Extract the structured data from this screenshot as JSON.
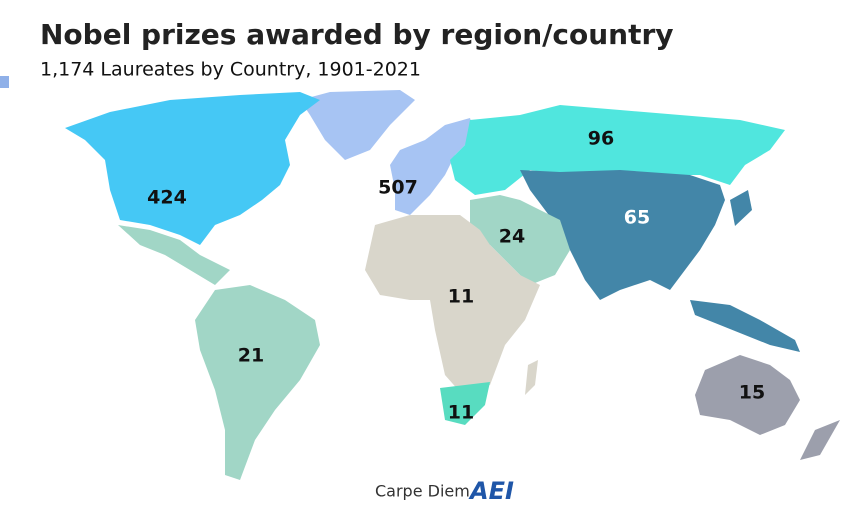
{
  "title": "Nobel prizes awarded by region/country",
  "subtitle": "1,174 Laureates by Country, 1901-2021",
  "regions": [
    {
      "value": 424,
      "color": "#45c8f5"
    },
    {
      "value": 507,
      "color": "#a7c4f3"
    },
    {
      "value": 96,
      "color": "#50e6de"
    },
    {
      "value": 65,
      "color": "#4386a8"
    },
    {
      "value": 24,
      "color": "#a1d6c6"
    },
    {
      "value": 11,
      "color": "#d9d6cb"
    },
    {
      "value": 21,
      "color": "#a1d6c6"
    },
    {
      "value": 11,
      "color": "#58dcc0"
    },
    {
      "value": 15,
      "color": "#9c9fac"
    }
  ],
  "footer": {
    "source": "Carpe Diem",
    "logo": "AEI"
  }
}
